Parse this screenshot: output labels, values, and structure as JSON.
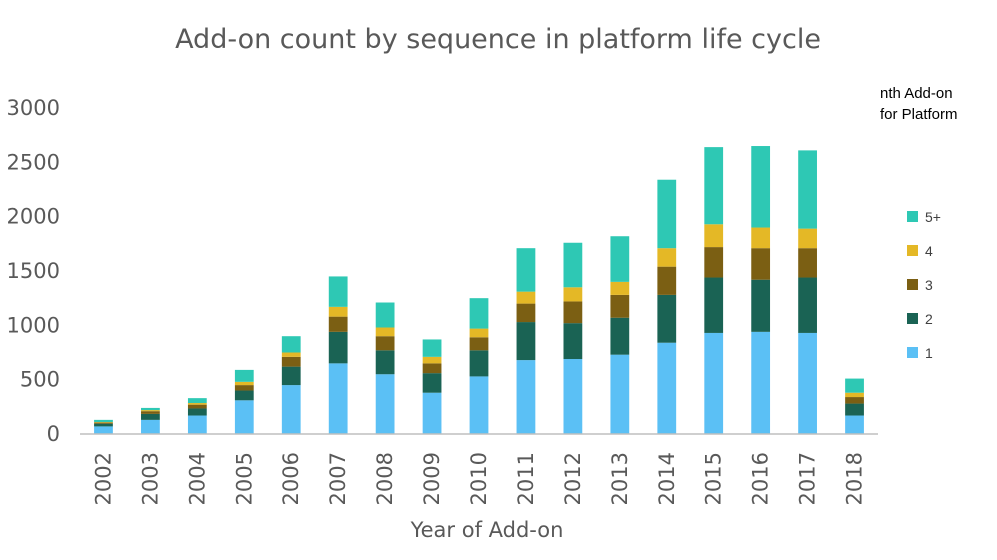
{
  "chart_data": {
    "type": "bar",
    "stacked": true,
    "title": "Add-on count by sequence in platform life cycle",
    "xlabel": "Year of Add-on",
    "ylabel": "",
    "ylim": [
      0,
      3000
    ],
    "yticks": [
      "0",
      "500",
      "1000",
      "1500",
      "2000",
      "2500",
      "3000"
    ],
    "grid": false,
    "legend_title_lines": [
      "nth Add-on",
      "for Platform"
    ],
    "legend_position": "right",
    "categories": [
      "2002",
      "2003",
      "2004",
      "2005",
      "2006",
      "2007",
      "2008",
      "2009",
      "2010",
      "2011",
      "2012",
      "2013",
      "2014",
      "2015",
      "2016",
      "2017",
      "2018"
    ],
    "series": [
      {
        "name": "1",
        "color": "#5BC0F5",
        "values": [
          70,
          130,
          170,
          310,
          450,
          650,
          550,
          380,
          530,
          680,
          690,
          730,
          840,
          930,
          940,
          930,
          170
        ]
      },
      {
        "name": "2",
        "color": "#1A6354",
        "values": [
          25,
          55,
          65,
          90,
          170,
          290,
          220,
          180,
          240,
          350,
          330,
          340,
          440,
          510,
          480,
          510,
          110
        ]
      },
      {
        "name": "3",
        "color": "#7B5F13",
        "values": [
          10,
          25,
          35,
          50,
          90,
          140,
          130,
          90,
          120,
          170,
          200,
          210,
          260,
          280,
          290,
          270,
          60
        ]
      },
      {
        "name": "4",
        "color": "#E4B826",
        "values": [
          5,
          10,
          15,
          30,
          40,
          90,
          80,
          60,
          80,
          110,
          130,
          120,
          170,
          210,
          190,
          180,
          40
        ]
      },
      {
        "name": "5+",
        "color": "#2EC8B4",
        "values": [
          20,
          20,
          45,
          110,
          150,
          280,
          230,
          160,
          280,
          400,
          410,
          420,
          630,
          710,
          750,
          720,
          130
        ]
      }
    ]
  }
}
